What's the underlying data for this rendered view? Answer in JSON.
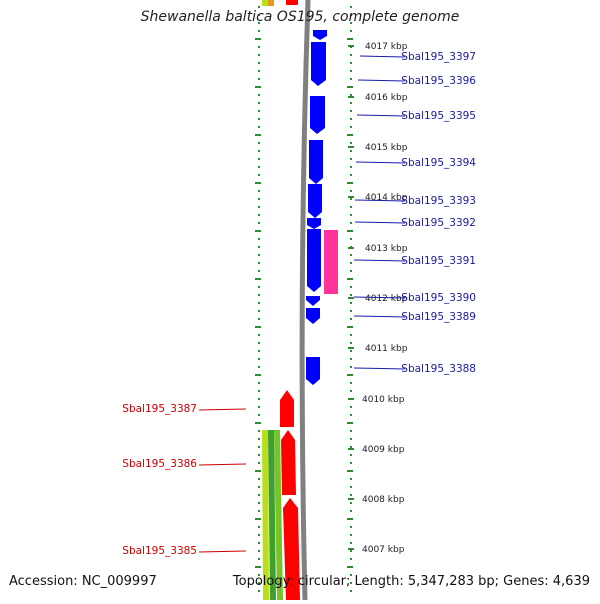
{
  "header": {
    "title": "Shewanella baltica OS195, complete genome"
  },
  "footer": {
    "accession": "Accession: NC_009997",
    "topology": "Topology: circular; Length: 5,347,283 bp; Genes: 4,639"
  },
  "ticks": [
    "4017 kbp",
    "4016 kbp",
    "4015 kbp",
    "4014 kbp",
    "4013 kbp",
    "4012 kbp",
    "4011 kbp",
    "4010 kbp",
    "4009 kbp",
    "4008 kbp",
    "4007 kbp"
  ],
  "genes_right": [
    "Sbal195_3397",
    "Sbal195_3396",
    "Sbal195_3395",
    "Sbal195_3394",
    "Sbal195_3393",
    "Sbal195_3392",
    "Sbal195_3391",
    "Sbal195_3390",
    "Sbal195_3389",
    "Sbal195_3388"
  ],
  "genes_left": [
    "Sbal195_3387",
    "Sbal195_3386",
    "Sbal195_3385"
  ],
  "colors": {
    "forward_gene": "#0000ff",
    "reverse_gene": "#ff0000",
    "feature_pink": "#ff3399",
    "label_forward": "#1a1aa6",
    "label_reverse": "#cc0000",
    "tick_green": "#2e8b2e",
    "backbone": "#808080"
  }
}
